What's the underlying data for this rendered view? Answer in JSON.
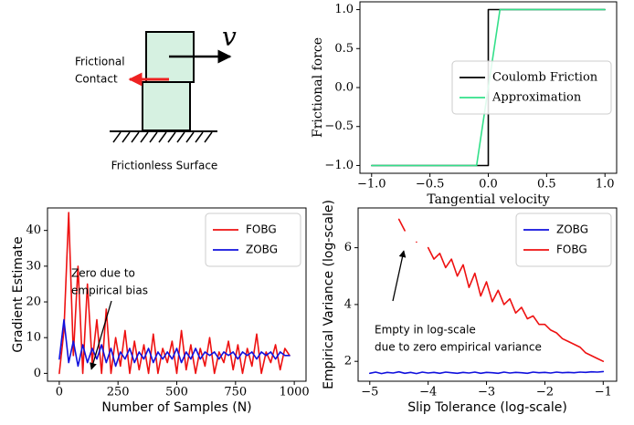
{
  "diagram": {
    "velocity_label": "v",
    "contact_label": [
      "Frictional",
      "Contact"
    ],
    "surface_label": "Frictionless Surface"
  },
  "chart_data": [
    {
      "type": "line",
      "xlabel": "Tangential velocity",
      "ylabel": "Frictional force",
      "xlim": [
        -1.1,
        1.1
      ],
      "ylim": [
        -1.1,
        1.1
      ],
      "xticks": [
        {
          "value": -1.0,
          "label": "−1.0"
        },
        {
          "value": -0.5,
          "label": "−0.5"
        },
        {
          "value": 0.0,
          "label": "0.0"
        },
        {
          "value": 0.5,
          "label": "0.5"
        },
        {
          "value": 1.0,
          "label": "1.0"
        }
      ],
      "yticks": [
        {
          "value": -1.0,
          "label": "−1.0"
        },
        {
          "value": -0.5,
          "label": "−0.5"
        },
        {
          "value": 0.0,
          "label": "0.0"
        },
        {
          "value": 0.5,
          "label": "0.5"
        },
        {
          "value": 1.0,
          "label": "1.0"
        }
      ],
      "legend": "center right",
      "series": [
        {
          "name": "Coulomb Friction",
          "color": "#000000",
          "x": [
            -1.0,
            0.0,
            0.0,
            1.0
          ],
          "values": [
            -1.0,
            -1.0,
            1.0,
            1.0
          ]
        },
        {
          "name": "Approximation",
          "color": "#33e08a",
          "x": [
            -1.0,
            -0.1,
            0.1,
            1.0
          ],
          "values": [
            -1.0,
            -1.0,
            1.0,
            1.0
          ]
        }
      ]
    },
    {
      "type": "line",
      "xlabel": "Number of Samples (N)",
      "ylabel": "Gradient Estimate",
      "xlim": [
        -50,
        1050
      ],
      "ylim": [
        -2.2,
        46.3
      ],
      "xticks": [
        0,
        250,
        500,
        750,
        1000
      ],
      "yticks": [
        0,
        10,
        20,
        30,
        40
      ],
      "legend": "upper right",
      "annotation": [
        "Zero due to",
        "empirical bias"
      ],
      "x": [
        0,
        20,
        40,
        60,
        80,
        100,
        120,
        140,
        160,
        180,
        200,
        220,
        240,
        260,
        280,
        300,
        320,
        340,
        360,
        380,
        400,
        420,
        440,
        460,
        480,
        500,
        520,
        540,
        560,
        580,
        600,
        620,
        640,
        660,
        680,
        700,
        720,
        740,
        760,
        780,
        800,
        820,
        840,
        860,
        880,
        900,
        920,
        940,
        960,
        980
      ],
      "series": [
        {
          "name": "FOBG",
          "color": "#ee1111",
          "values": [
            0,
            12,
            45,
            5,
            30,
            0,
            25,
            3,
            15,
            0,
            18,
            0,
            10,
            2,
            12,
            0,
            9,
            1,
            8,
            0,
            11,
            0,
            7,
            3,
            9,
            0,
            12,
            1,
            8,
            0,
            7,
            2,
            10,
            0,
            6,
            3,
            9,
            1,
            8,
            0,
            7,
            2,
            11,
            0,
            6,
            3,
            8,
            1,
            7,
            5
          ]
        },
        {
          "name": "ZOBG",
          "color": "#1111dd",
          "values": [
            4,
            15,
            3,
            9,
            2,
            8,
            3,
            7,
            4,
            8,
            3,
            7,
            2,
            6,
            4,
            7,
            3,
            6,
            4,
            7,
            3,
            6,
            4,
            6,
            4,
            7,
            3,
            6,
            4,
            7,
            4,
            6,
            5,
            6,
            4,
            6,
            5,
            6,
            4,
            6,
            5,
            6,
            4,
            6,
            5,
            6,
            4,
            6,
            5,
            5
          ]
        }
      ]
    },
    {
      "type": "line",
      "xlabel": "Slip Tolerance (log-scale)",
      "ylabel": "Empirical Variance (log-scale)",
      "xlim": [
        -5.2,
        -0.77
      ],
      "ylim": [
        1.3,
        7.4
      ],
      "xticks": [
        {
          "value": -5,
          "label": "−5"
        },
        {
          "value": -4,
          "label": "−4"
        },
        {
          "value": -3,
          "label": "−3"
        },
        {
          "value": -2,
          "label": "−2"
        },
        {
          "value": -1,
          "label": "−1"
        }
      ],
      "yticks": [
        2,
        4,
        6
      ],
      "legend": "upper right",
      "annotation": [
        "Empty in log-scale",
        "due to zero empirical variance"
      ],
      "x": [
        -5.0,
        -4.9,
        -4.8,
        -4.7,
        -4.6,
        -4.5,
        -4.4,
        -4.3,
        -4.2,
        -4.1,
        -4.0,
        -3.9,
        -3.8,
        -3.7,
        -3.6,
        -3.5,
        -3.4,
        -3.3,
        -3.2,
        -3.1,
        -3.0,
        -2.9,
        -2.8,
        -2.7,
        -2.6,
        -2.5,
        -2.4,
        -2.3,
        -2.2,
        -2.1,
        -2.0,
        -1.9,
        -1.8,
        -1.7,
        -1.6,
        -1.5,
        -1.4,
        -1.3,
        -1.2,
        -1.1,
        -1.0
      ],
      "series": [
        {
          "name": "ZOBG",
          "color": "#1111dd",
          "values": [
            1.58,
            1.62,
            1.57,
            1.61,
            1.59,
            1.63,
            1.58,
            1.61,
            1.57,
            1.62,
            1.59,
            1.61,
            1.58,
            1.62,
            1.6,
            1.58,
            1.61,
            1.59,
            1.62,
            1.58,
            1.61,
            1.6,
            1.58,
            1.62,
            1.59,
            1.61,
            1.6,
            1.58,
            1.62,
            1.6,
            1.61,
            1.59,
            1.62,
            1.6,
            1.61,
            1.6,
            1.62,
            1.61,
            1.63,
            1.62,
            1.64
          ]
        },
        {
          "name": "FOBG",
          "color": "#ee1111",
          "values": [
            null,
            null,
            null,
            null,
            null,
            7.0,
            6.6,
            null,
            6.2,
            null,
            6.0,
            5.6,
            5.8,
            5.3,
            5.6,
            5.0,
            5.4,
            4.6,
            5.1,
            4.3,
            4.8,
            4.1,
            4.5,
            4.0,
            4.2,
            3.7,
            3.9,
            3.5,
            3.6,
            3.3,
            3.3,
            3.1,
            3.0,
            2.8,
            2.7,
            2.6,
            2.5,
            2.3,
            2.2,
            2.1,
            2.0
          ]
        }
      ]
    }
  ]
}
